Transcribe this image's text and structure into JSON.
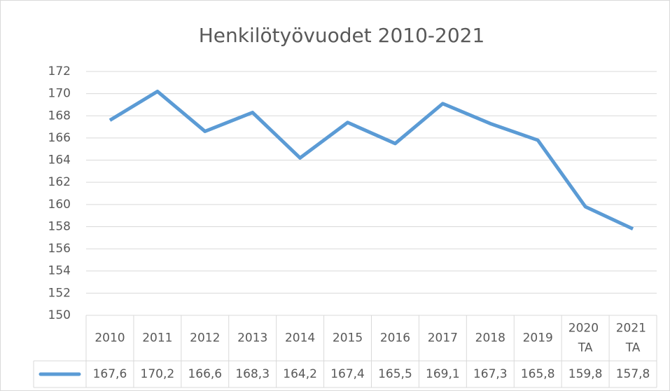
{
  "chart_data": {
    "type": "line",
    "title": "Henkilötyövuodet 2010-2021",
    "categories": [
      "2010",
      "2011",
      "2012",
      "2013",
      "2014",
      "2015",
      "2016",
      "2017",
      "2018",
      "2019",
      "2020 TA",
      "2021 TA"
    ],
    "series": [
      {
        "name": null,
        "color": "#5b9bd5",
        "values": [
          167.6,
          170.2,
          166.6,
          168.3,
          164.2,
          167.4,
          165.5,
          169.1,
          167.3,
          165.8,
          159.8,
          157.8
        ],
        "value_labels": [
          "167,6",
          "170,2",
          "166,6",
          "168,3",
          "164,2",
          "167,4",
          "165,5",
          "169,1",
          "167,3",
          "165,8",
          "159,8",
          "157,8"
        ]
      }
    ],
    "ylim": [
      150,
      172
    ],
    "yticks": [
      150,
      152,
      154,
      156,
      158,
      160,
      162,
      164,
      166,
      168,
      170,
      172
    ],
    "grid": true
  }
}
